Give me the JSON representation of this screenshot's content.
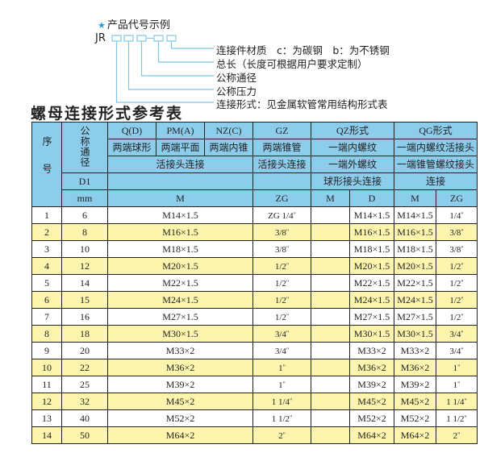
{
  "diagram": {
    "title": "产品代号示例",
    "prefix": "JR",
    "labels": [
      "连接件材质　c：为碳钢　b：为不锈钢",
      "总长（长度可根据用户要求定制）",
      "公称通径",
      "公称压力",
      "连接形式：见金属软管常用结构形式表"
    ],
    "line_color": "#7ec8e3"
  },
  "heading": "螺母连接形式参考表",
  "colors": {
    "header": "#8dcdec",
    "odd_row": "#ffffff",
    "even_row": "#fdf5ae"
  },
  "header": {
    "seq": "序号",
    "dn": "公称通径",
    "codes": [
      "Q(D)",
      "PM(A)",
      "NZ(C)",
      "GZ",
      "QZ形式",
      "QG形式"
    ],
    "ends": [
      "两端球形",
      "两端平面",
      "两端内锥",
      "两端锥管",
      "一端内螺纹",
      "一端内螺纹活接头"
    ],
    "conn": [
      "活接头连接",
      "活接头连接",
      "一端外螺纹",
      "一端锥管螺纹接头"
    ],
    "d1": "D1",
    "row4": [
      "",
      "",
      "球形接头连接",
      "连接"
    ],
    "unit": "mm",
    "cols": [
      "M",
      "ZG",
      "M",
      "D",
      "M",
      "ZG"
    ]
  },
  "rows": [
    {
      "no": "1",
      "dn": "6",
      "m": "M14×1.5",
      "gz": "ZG 1/4",
      "qzm": "",
      "qzd": "M14×1.5",
      "qgm": "M14×1.5",
      "qgzg": "1/4"
    },
    {
      "no": "2",
      "dn": "8",
      "m": "M16×1.5",
      "gz": "3/8",
      "qzm": "",
      "qzd": "M16×1.5",
      "qgm": "M16×1.5",
      "qgzg": "3/8"
    },
    {
      "no": "3",
      "dn": "10",
      "m": "M18×1.5",
      "gz": "3/8",
      "qzm": "",
      "qzd": "M18×1.5",
      "qgm": "M18×1.5",
      "qgzg": "3/8"
    },
    {
      "no": "4",
      "dn": "12",
      "m": "M20×1.5",
      "gz": "1/2",
      "qzm": "",
      "qzd": "M20×1.5",
      "qgm": "M20×1.5",
      "qgzg": "1/2"
    },
    {
      "no": "5",
      "dn": "14",
      "m": "M22×1.5",
      "gz": "1/2",
      "qzm": "",
      "qzd": "M22×1.5",
      "qgm": "M22×1.5",
      "qgzg": "1/2"
    },
    {
      "no": "6",
      "dn": "15",
      "m": "M24×1.5",
      "gz": "1/2",
      "qzm": "",
      "qzd": "M24×1.5",
      "qgm": "M24×1.5",
      "qgzg": "1/2"
    },
    {
      "no": "7",
      "dn": "16",
      "m": "M27×1.5",
      "gz": "1/2",
      "qzm": "",
      "qzd": "M27×1.5",
      "qgm": "M27×1.5",
      "qgzg": "1/2"
    },
    {
      "no": "8",
      "dn": "18",
      "m": "M30×1.5",
      "gz": "3/4",
      "qzm": "",
      "qzd": "M30×1.5",
      "qgm": "M30×1.5",
      "qgzg": "3/4"
    },
    {
      "no": "9",
      "dn": "20",
      "m": "M33×2",
      "gz": "3/4",
      "qzm": "",
      "qzd": "M33×2",
      "qgm": "M33×2",
      "qgzg": "3/4"
    },
    {
      "no": "10",
      "dn": "22",
      "m": "M36×2",
      "gz": "1",
      "qzm": "",
      "qzd": "M36×2",
      "qgm": "M36×2",
      "qgzg": "1"
    },
    {
      "no": "11",
      "dn": "25",
      "m": "M39×2",
      "gz": "1",
      "qzm": "",
      "qzd": "M39×2",
      "qgm": "M39×2",
      "qgzg": "1"
    },
    {
      "no": "12",
      "dn": "32",
      "m": "M45×2",
      "gz": "1 1/4",
      "qzm": "",
      "qzd": "M45×2",
      "qgm": "M45×2",
      "qgzg": "1 1/4"
    },
    {
      "no": "13",
      "dn": "40",
      "m": "M52×2",
      "gz": "1 1/2",
      "qzm": "",
      "qzd": "M52×2",
      "qgm": "M52×2",
      "qgzg": "1 1/2"
    },
    {
      "no": "14",
      "dn": "50",
      "m": "M64×2",
      "gz": "2",
      "qzm": "",
      "qzd": "M64×2",
      "qgm": "M64×2",
      "qgzg": "2"
    }
  ]
}
